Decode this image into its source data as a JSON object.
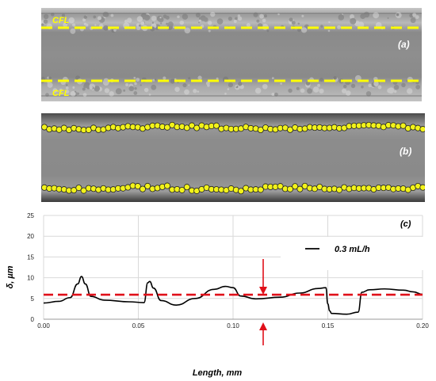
{
  "panel_a": {
    "label": "(a)",
    "cfl_top_label": "CFL",
    "cfl_bottom_label": "CFL",
    "line_color": "#ffff00"
  },
  "panel_b": {
    "label": "(b)",
    "marker_color": "#f2f21a"
  },
  "panel_c": {
    "label": "(c)",
    "legend_label": "0.3 mL/h",
    "arrow_color": "#e0101a"
  },
  "chart_data": {
    "type": "line",
    "title": "",
    "xlabel": "Length, mm",
    "ylabel": "δ, µm",
    "xlim": [
      0.0,
      0.2
    ],
    "ylim": [
      0,
      25
    ],
    "x_ticks": [
      "0.00",
      "0.05",
      "0.10",
      "0.15",
      "0.20"
    ],
    "y_ticks": [
      "0",
      "5",
      "10",
      "15",
      "20",
      "25"
    ],
    "grid": true,
    "legend_position": "top-right",
    "series": [
      {
        "name": "0.3 mL/h",
        "color": "#000000",
        "style": "solid",
        "x": [
          0.0,
          0.008,
          0.014,
          0.018,
          0.02,
          0.022,
          0.025,
          0.032,
          0.045,
          0.053,
          0.055,
          0.056,
          0.058,
          0.062,
          0.07,
          0.08,
          0.09,
          0.096,
          0.1,
          0.104,
          0.112,
          0.125,
          0.135,
          0.145,
          0.149,
          0.15,
          0.151,
          0.152,
          0.16,
          0.166,
          0.168,
          0.172,
          0.18,
          0.19,
          0.195,
          0.2
        ],
        "y": [
          3.9,
          4.3,
          5.2,
          8.5,
          10.3,
          8.5,
          5.5,
          4.6,
          4.2,
          4.0,
          8.8,
          9.1,
          7.5,
          4.5,
          3.4,
          5.0,
          7.2,
          7.9,
          7.6,
          5.6,
          4.9,
          5.3,
          6.3,
          7.4,
          7.6,
          3.7,
          2.0,
          1.4,
          1.2,
          1.7,
          6.5,
          7.1,
          7.3,
          7.0,
          6.6,
          6.0
        ]
      },
      {
        "name": "",
        "color": "#e0101a",
        "style": "dashed",
        "x": [
          0.0,
          0.2
        ],
        "y": [
          5.9,
          5.9
        ]
      }
    ]
  }
}
